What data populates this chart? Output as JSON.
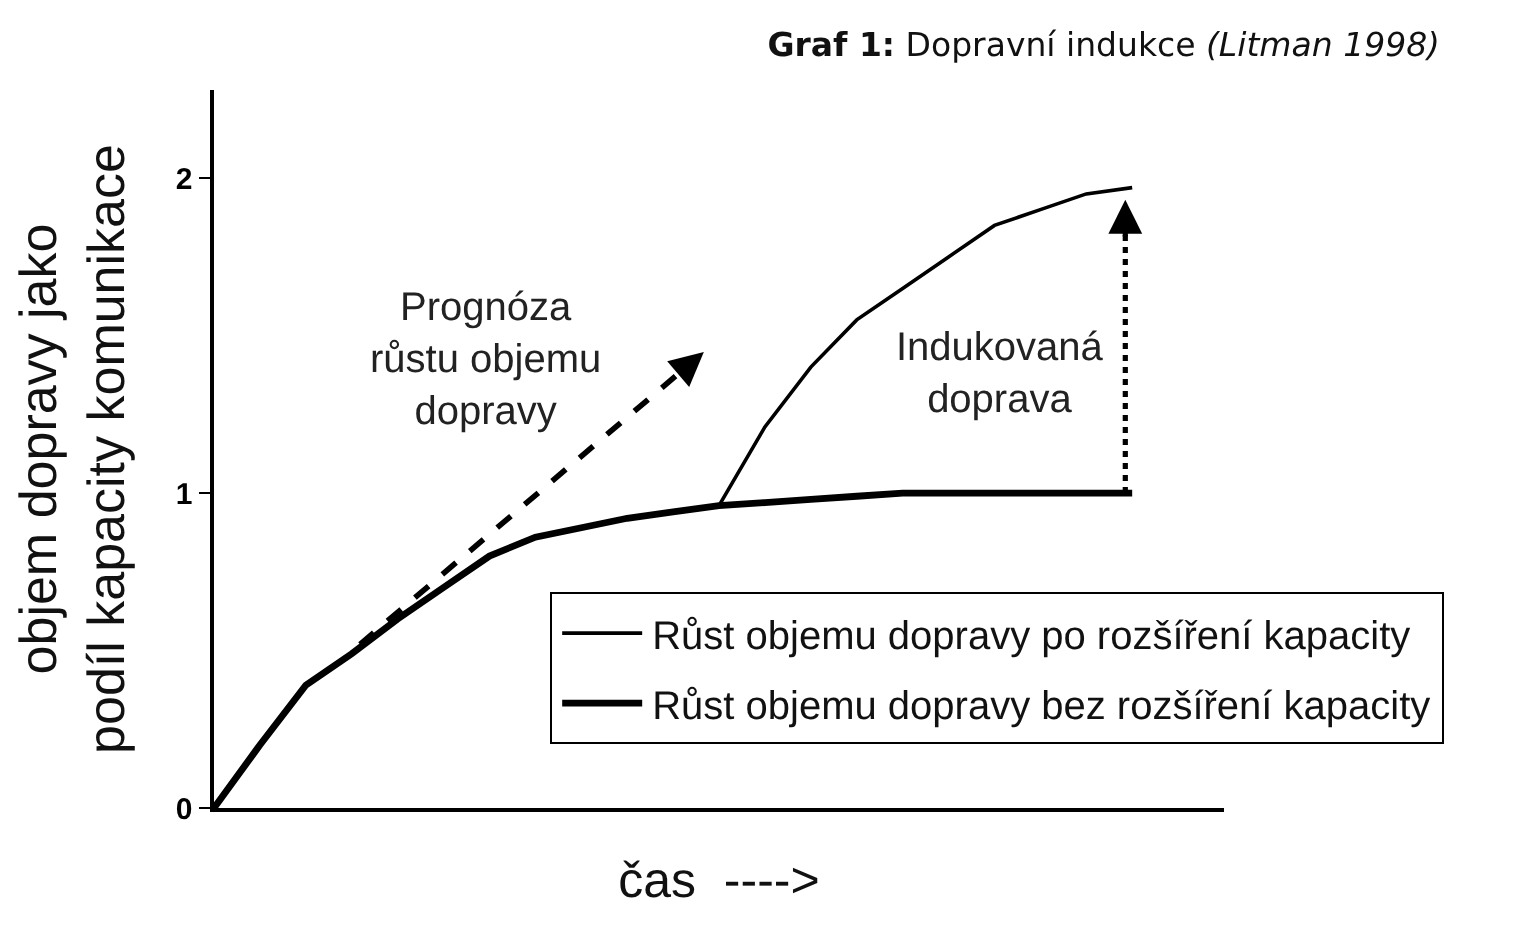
{
  "chart_data": {
    "type": "line",
    "title": "Graf 1: Dopravní indukce (Litman 1998)",
    "xlabel": "čas  ---->",
    "ylabel": "objem dopravy jako\npodíl kapacity komunikace",
    "categories": [
      null,
      null,
      null,
      null,
      null,
      null,
      null,
      null,
      null,
      null,
      null,
      null,
      null,
      null,
      null,
      null,
      null,
      null,
      null,
      null,
      null,
      null,
      null
    ],
    "series": [
      {
        "name": "Růst objemu dopravy po rozšíření kapacity",
        "color": "#000000",
        "values": [
          null,
          null,
          null,
          null,
          null,
          null,
          null,
          null,
          null,
          null,
          null,
          0.96,
          1.21,
          1.4,
          1.55,
          1.65,
          1.75,
          1.85,
          1.9,
          1.95,
          1.97,
          null,
          null
        ]
      },
      {
        "name": "Růst objemu dopravy bez rozšíření kapacity",
        "color": "#000000",
        "values": [
          0,
          0.2,
          0.39,
          0.49,
          0.6,
          0.7,
          0.8,
          0.86,
          0.89,
          0.92,
          0.94,
          0.96,
          0.97,
          0.98,
          0.99,
          1.0,
          1.0,
          1.0,
          1.0,
          1.0,
          1.0,
          null,
          null
        ]
      }
    ],
    "annotations": [
      "Prognóza\nrůstu objemu\ndopravy",
      "Indukovaná\ndoprava"
    ],
    "ylim": [
      0,
      2.28
    ],
    "yticks": [
      0,
      1,
      2
    ],
    "tick_labels": "y",
    "legend": "bottom right"
  }
}
